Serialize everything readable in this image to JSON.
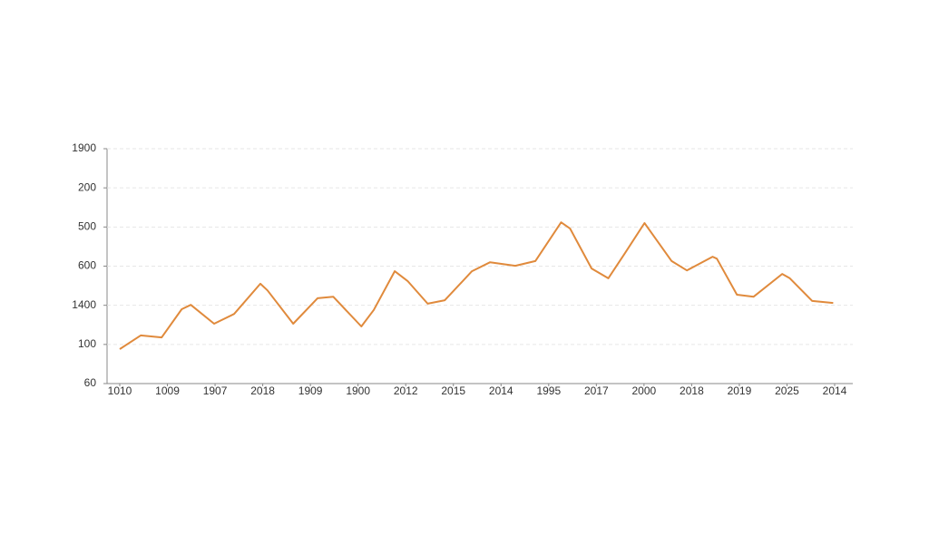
{
  "chart_data": {
    "type": "line",
    "xlim": [
      0,
      15
    ],
    "xticks": [
      {
        "value": 0,
        "label": "1010"
      },
      {
        "value": 1,
        "label": "1009"
      },
      {
        "value": 2,
        "label": "1907"
      },
      {
        "value": 3,
        "label": "2018"
      },
      {
        "value": 4,
        "label": "1909"
      },
      {
        "value": 5,
        "label": "1900"
      },
      {
        "value": 6,
        "label": "2012"
      },
      {
        "value": 7,
        "label": "2015"
      },
      {
        "value": 8,
        "label": "2014"
      },
      {
        "value": 9,
        "label": "1995"
      },
      {
        "value": 10,
        "label": "2017"
      },
      {
        "value": 11,
        "label": "2000"
      },
      {
        "value": 12,
        "label": "2018"
      },
      {
        "value": 13,
        "label": "2019"
      },
      {
        "value": 14,
        "label": "2025"
      },
      {
        "value": 15,
        "label": "2014"
      }
    ],
    "ylim": [
      0,
      6
    ],
    "yticks": [
      {
        "value": 0,
        "label": "60"
      },
      {
        "value": 1,
        "label": "100"
      },
      {
        "value": 2,
        "label": "1400"
      },
      {
        "value": 3,
        "label": "600"
      },
      {
        "value": 4,
        "label": "500"
      },
      {
        "value": 5,
        "label": "200"
      },
      {
        "value": 6,
        "label": "1900"
      }
    ],
    "grid": true,
    "series": [
      {
        "color": "#e08a3c",
        "x": [
          0,
          0.44,
          0.88,
          1.3,
          1.49,
          1.98,
          2.4,
          2.95,
          3.1,
          3.64,
          4.15,
          4.48,
          5.07,
          5.33,
          5.77,
          6.04,
          6.46,
          6.82,
          7.39,
          7.77,
          8.3,
          8.72,
          9.26,
          9.45,
          9.9,
          10.25,
          10.59,
          11.01,
          11.58,
          11.9,
          12.44,
          12.53,
          12.95,
          13.3,
          13.9,
          14.06,
          14.53,
          14.97
        ],
        "values": [
          0.88,
          1.23,
          1.18,
          1.9,
          2.01,
          1.53,
          1.78,
          2.55,
          2.38,
          1.53,
          2.18,
          2.22,
          1.46,
          1.88,
          2.87,
          2.62,
          2.04,
          2.13,
          2.87,
          3.1,
          3.01,
          3.13,
          4.12,
          3.96,
          2.94,
          2.69,
          3.31,
          4.1,
          3.13,
          2.89,
          3.24,
          3.19,
          2.27,
          2.22,
          2.8,
          2.69,
          2.11,
          2.06
        ]
      }
    ]
  }
}
